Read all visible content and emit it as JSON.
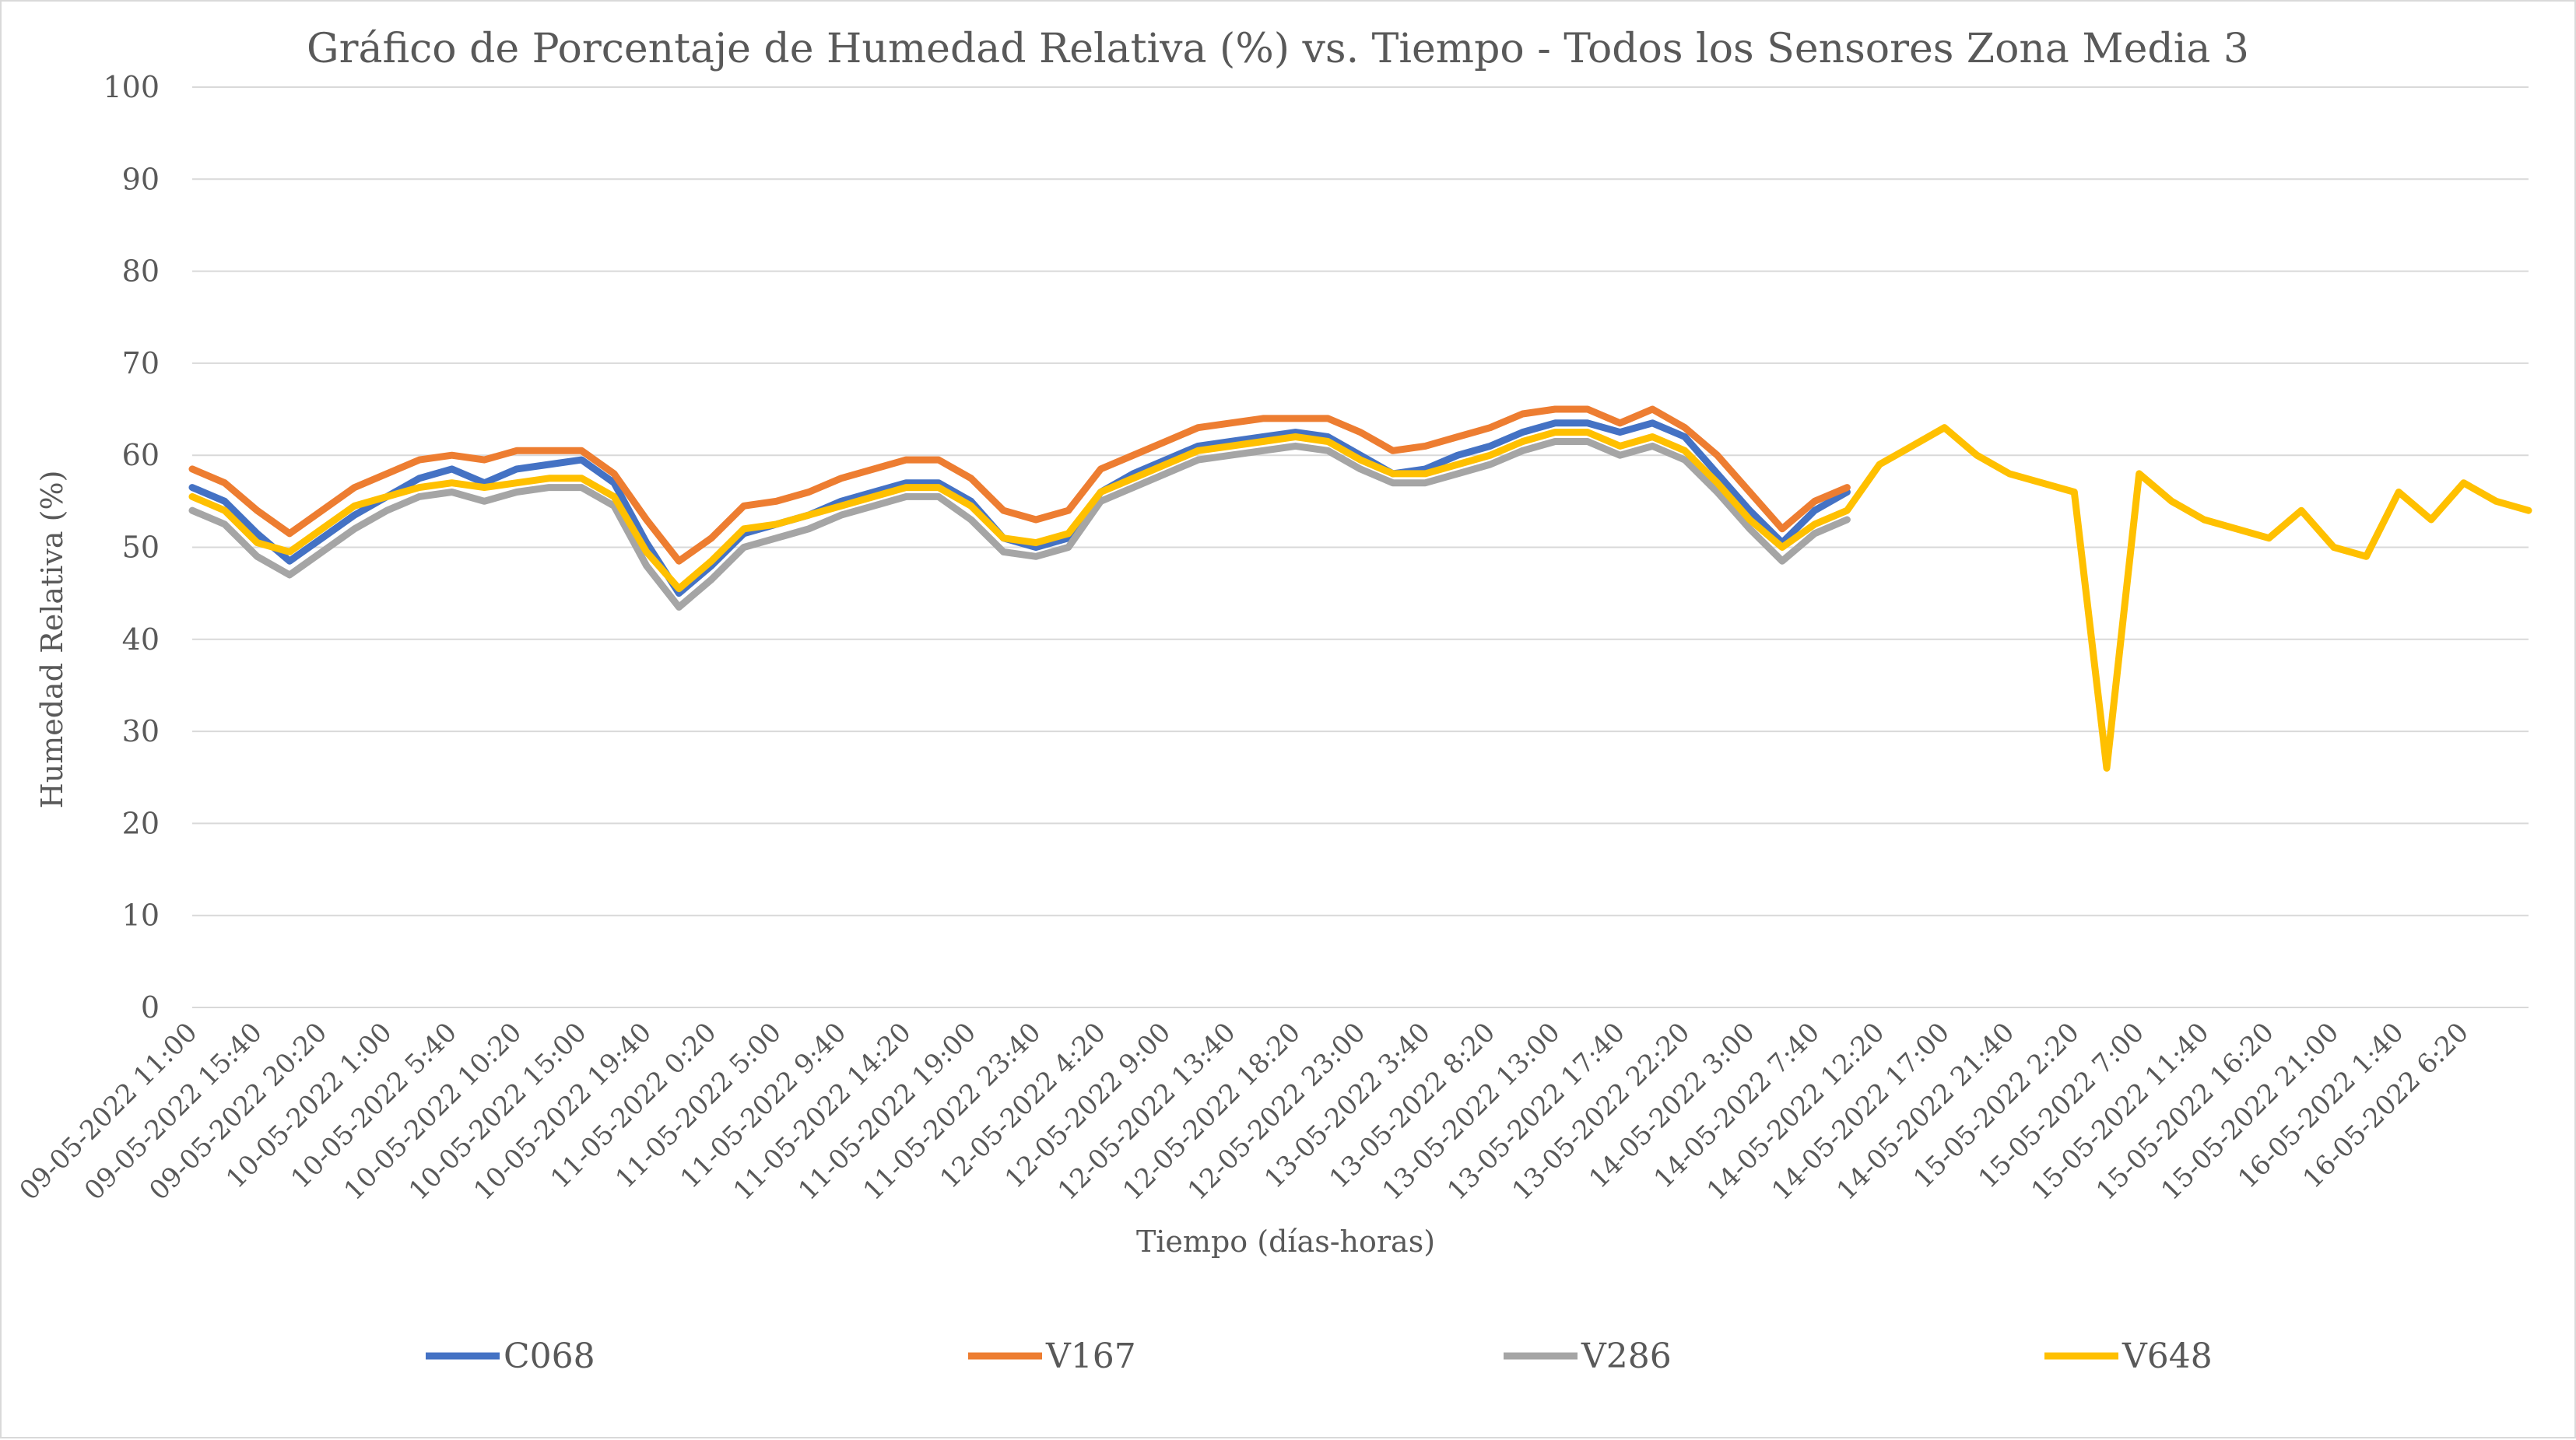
{
  "chart_data": {
    "type": "line",
    "title": "Gráfico de Porcentaje de Humedad Relativa (%) vs. Tiempo - Todos los Sensores Zona Media 3",
    "xlabel": "Tiempo (días-horas)",
    "ylabel": "Humedad Relativa (%)",
    "ylim": [
      0,
      100
    ],
    "yticks": [
      0,
      10,
      20,
      30,
      40,
      50,
      60,
      70,
      80,
      90,
      100
    ],
    "grid": true,
    "legend_position": "bottom",
    "x_tick_labels": [
      "09-05-2022 11:00",
      "09-05-2022 15:40",
      "09-05-2022 20:20",
      "10-05-2022 1:00",
      "10-05-2022 5:40",
      "10-05-2022 10:20",
      "10-05-2022 15:00",
      "10-05-2022 19:40",
      "11-05-2022 0:20",
      "11-05-2022 5:00",
      "11-05-2022 9:40",
      "11-05-2022 14:20",
      "11-05-2022 19:00",
      "11-05-2022 23:40",
      "12-05-2022 4:20",
      "12-05-2022 9:00",
      "12-05-2022 13:40",
      "12-05-2022 18:20",
      "12-05-2022 23:00",
      "13-05-2022 3:40",
      "13-05-2022 8:20",
      "13-05-2022 13:00",
      "13-05-2022 17:40",
      "13-05-2022 22:20",
      "14-05-2022 3:00",
      "14-05-2022 7:40",
      "14-05-2022 12:20",
      "14-05-2022 17:00",
      "14-05-2022 21:40",
      "15-05-2022 2:20",
      "15-05-2022 7:00",
      "15-05-2022 11:40",
      "15-05-2022 16:20",
      "15-05-2022 21:00",
      "16-05-2022 1:40",
      "16-05-2022 6:20"
    ],
    "x": [
      0,
      0.5,
      1,
      1.5,
      2,
      2.5,
      3,
      3.5,
      4,
      4.5,
      5,
      5.5,
      6,
      6.5,
      7,
      7.5,
      8,
      8.5,
      9,
      9.5,
      10,
      10.5,
      11,
      11.5,
      12,
      12.5,
      13,
      13.5,
      14,
      14.5,
      15,
      15.5,
      16,
      16.5,
      17,
      17.5,
      18,
      18.5,
      19,
      19.5,
      20,
      20.5,
      21,
      21.5,
      22,
      22.5,
      23,
      23.5,
      24,
      24.5,
      25,
      25.5,
      26,
      26.5,
      27,
      27.5,
      28,
      28.5,
      29,
      29.5,
      30,
      30.5,
      31,
      31.5,
      32,
      32.5,
      33,
      33.5,
      34,
      34.5,
      35,
      35.5,
      36
    ],
    "series": [
      {
        "name": "C068",
        "color": "#4472C4",
        "values": [
          56.5,
          55,
          51.5,
          48.5,
          51,
          53.5,
          55.5,
          57.5,
          58.5,
          57,
          58.5,
          59,
          59.5,
          57,
          50.5,
          45,
          48,
          51.5,
          52.5,
          53.5,
          55,
          56,
          57,
          57,
          55,
          51,
          50,
          51,
          56,
          58,
          59.5,
          61,
          61.5,
          62,
          62.5,
          62,
          60,
          58,
          58.5,
          60,
          61,
          62.5,
          63.5,
          63.5,
          62.5,
          63.5,
          62,
          58,
          54,
          50.5,
          54,
          56,
          null,
          null,
          null,
          null,
          null,
          null,
          null,
          null,
          null,
          null,
          null,
          null,
          null,
          null,
          null,
          null,
          null,
          null,
          null,
          null,
          null
        ]
      },
      {
        "name": "V167",
        "color": "#ED7D31",
        "values": [
          58.5,
          57,
          54,
          51.5,
          54,
          56.5,
          58,
          59.5,
          60,
          59.5,
          60.5,
          60.5,
          60.5,
          58,
          53,
          48.5,
          51,
          54.5,
          55,
          56,
          57.5,
          58.5,
          59.5,
          59.5,
          57.5,
          54,
          53,
          54,
          58.5,
          60,
          61.5,
          63,
          63.5,
          64,
          64,
          64,
          62.5,
          60.5,
          61,
          62,
          63,
          64.5,
          65,
          65,
          63.5,
          65,
          63,
          60,
          56,
          52,
          55,
          56.5,
          null,
          null,
          null,
          null,
          null,
          null,
          null,
          null,
          null,
          null,
          null,
          null,
          null,
          null,
          null,
          null,
          null,
          null,
          null,
          null,
          null
        ]
      },
      {
        "name": "V286",
        "color": "#A5A5A5",
        "values": [
          54,
          52.5,
          49,
          47,
          49.5,
          52,
          54,
          55.5,
          56,
          55,
          56,
          56.5,
          56.5,
          54.5,
          48,
          43.5,
          46.5,
          50,
          51,
          52,
          53.5,
          54.5,
          55.5,
          55.5,
          53,
          49.5,
          49,
          50,
          55,
          56.5,
          58,
          59.5,
          60,
          60.5,
          61,
          60.5,
          58.5,
          57,
          57,
          58,
          59,
          60.5,
          61.5,
          61.5,
          60,
          61,
          59.5,
          56,
          52,
          48.5,
          51.5,
          53,
          null,
          null,
          null,
          null,
          null,
          null,
          null,
          null,
          null,
          null,
          null,
          null,
          null,
          null,
          null,
          null,
          null,
          null,
          null,
          null,
          null
        ]
      },
      {
        "name": "V648",
        "color": "#FFC000",
        "values": [
          55.5,
          54,
          50.5,
          49.5,
          52,
          54.5,
          55.5,
          56.5,
          57,
          56.5,
          57,
          57.5,
          57.5,
          55.5,
          49.5,
          45.5,
          48.5,
          52,
          52.5,
          53.5,
          54.5,
          55.5,
          56.5,
          56.5,
          54.5,
          51,
          50.5,
          51.5,
          56,
          57.5,
          59,
          60.5,
          61,
          61.5,
          62,
          61.5,
          59.5,
          58,
          58,
          59,
          60,
          61.5,
          62.5,
          62.5,
          61,
          62,
          60.5,
          57,
          53,
          50,
          52.5,
          54,
          59,
          61,
          63,
          60,
          58,
          57,
          56,
          26,
          58,
          55,
          53,
          52,
          51,
          54,
          50,
          49,
          56,
          53,
          57,
          55,
          54
        ]
      }
    ]
  },
  "legend": {
    "items": [
      {
        "label": "C068",
        "color": "#4472C4"
      },
      {
        "label": "V167",
        "color": "#ED7D31"
      },
      {
        "label": "V286",
        "color": "#A5A5A5"
      },
      {
        "label": "V648",
        "color": "#FFC000"
      }
    ]
  }
}
